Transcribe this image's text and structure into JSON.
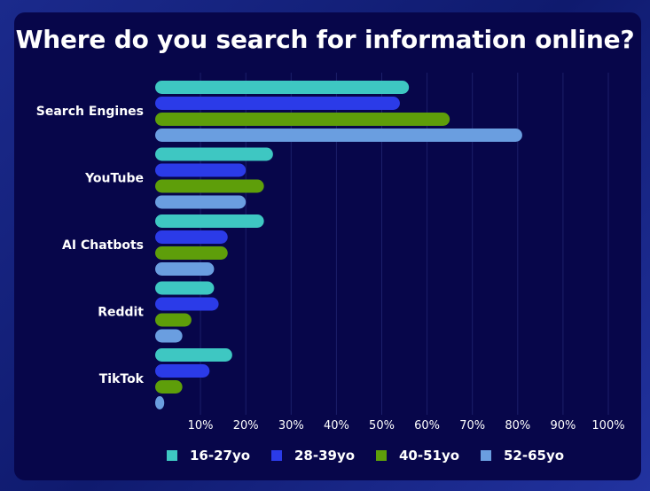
{
  "chart_data": {
    "type": "bar",
    "orientation": "horizontal",
    "title": "Where do you search for information online?",
    "categories": [
      "Search Engines",
      "YouTube",
      "AI Chatbots",
      "Reddit",
      "TikTok"
    ],
    "series": [
      {
        "name": "16-27yo",
        "color": "#3ec7c2",
        "values": [
          56,
          26,
          24,
          13,
          17
        ]
      },
      {
        "name": "28-39yo",
        "color": "#2b3be8",
        "values": [
          54,
          20,
          16,
          14,
          12
        ]
      },
      {
        "name": "40-51yo",
        "color": "#5e9e0a",
        "values": [
          65,
          24,
          16,
          8,
          6
        ]
      },
      {
        "name": "52-65yo",
        "color": "#6a9ee0",
        "values": [
          81,
          20,
          13,
          6,
          2
        ]
      }
    ],
    "x_ticks": [
      "10%",
      "20%",
      "30%",
      "40%",
      "50%",
      "60%",
      "70%",
      "80%",
      "90%",
      "100%"
    ],
    "xlim": [
      0,
      100
    ],
    "grid": true,
    "legend_position": "bottom"
  }
}
